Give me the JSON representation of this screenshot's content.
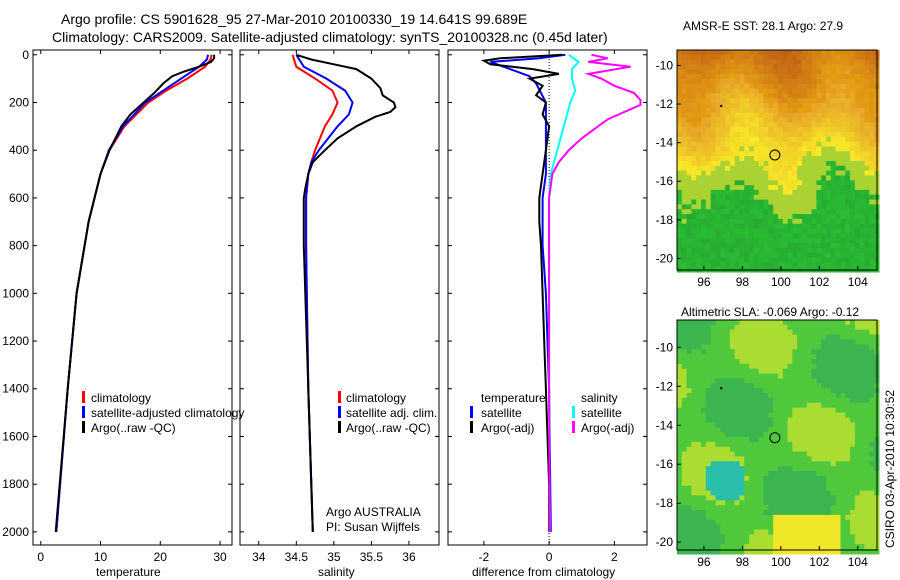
{
  "figure": {
    "title_line1": "Argo profile: CS 5901628_95 27-Mar-2010 20100330_19 14.641S 99.689E",
    "title_line2": "Climatology: CARS2009. Satellite-adjusted climatology: synTS_20100328.nc (0.45d later)",
    "footer_stamp": "CSIRO 03-Apr-2010 10:30:52",
    "colors": {
      "climatology": "#ff0000",
      "satellite": "#0000ff",
      "argo": "#000000",
      "sal_satellite": "#00ffff",
      "sal_argo": "#ff00ff"
    }
  },
  "chart_data": [
    {
      "type": "line",
      "name": "temperature",
      "xlabel": "temperature",
      "ylabel": "",
      "xlim": [
        -1.3,
        32
      ],
      "ylim": [
        2055,
        -20
      ],
      "xticks": [
        0,
        10,
        20,
        30
      ],
      "yticks": [
        0,
        200,
        400,
        600,
        800,
        1000,
        1200,
        1400,
        1600,
        1800,
        2000
      ],
      "legend": [
        "climatology",
        "satellite-adjusted climatology",
        "Argo(..raw -QC)"
      ],
      "series": [
        {
          "name": "climatology",
          "color": "#ff0000",
          "p": [
            0,
            20,
            50,
            100,
            150,
            200,
            300,
            400,
            500,
            700,
            1000,
            1400,
            2000
          ],
          "v": [
            28.6,
            28.4,
            27.5,
            24.5,
            21,
            18,
            14,
            11.5,
            10,
            8,
            6,
            4.5,
            2.6
          ]
        },
        {
          "name": "satellite-adjusted climatology",
          "color": "#0000ff",
          "p": [
            0,
            20,
            50,
            100,
            150,
            200,
            300,
            400,
            500,
            700,
            1000,
            1400,
            2000
          ],
          "v": [
            28,
            27.8,
            26.5,
            23.5,
            20.5,
            17.5,
            13.8,
            11.4,
            10,
            8,
            6,
            4.5,
            2.6
          ]
        },
        {
          "name": "Argo(..raw -QC)",
          "color": "#000000",
          "p": [
            0,
            15,
            30,
            50,
            70,
            90,
            120,
            160,
            200,
            250,
            300,
            400,
            500,
            700,
            1000,
            1400,
            2000
          ],
          "v": [
            29,
            29,
            28.5,
            26.5,
            24,
            22,
            20.5,
            19,
            17.2,
            15,
            13.5,
            11.5,
            10,
            8,
            6,
            4.5,
            2.5
          ]
        }
      ]
    },
    {
      "type": "line",
      "name": "salinity",
      "xlabel": "salinity",
      "xlim": [
        33.75,
        36.4
      ],
      "ylim": [
        2055,
        -20
      ],
      "xticks": [
        34,
        34.5,
        35,
        35.5,
        36
      ],
      "legend": [
        "climatology",
        "satellite adj. clim.",
        "Argo(..raw -QC)"
      ],
      "annotation": [
        "Argo AUSTRALIA",
        "PI: Susan Wijffels"
      ],
      "series": [
        {
          "name": "climatology",
          "color": "#ff0000",
          "p": [
            0,
            50,
            100,
            150,
            200,
            250,
            300,
            400,
            450,
            500,
            600,
            800,
            1000,
            1400,
            2000
          ],
          "v": [
            34.45,
            34.5,
            34.75,
            34.98,
            35.05,
            34.98,
            34.88,
            34.75,
            34.7,
            34.66,
            34.63,
            34.63,
            34.64,
            34.66,
            34.72
          ]
        },
        {
          "name": "satellite adj. clim.",
          "color": "#0000ff",
          "p": [
            0,
            50,
            100,
            150,
            200,
            250,
            300,
            400,
            450,
            500,
            600,
            800,
            1000,
            1400,
            2000
          ],
          "v": [
            34.5,
            34.6,
            34.9,
            35.15,
            35.25,
            35.2,
            35.05,
            34.8,
            34.7,
            34.66,
            34.63,
            34.63,
            34.64,
            34.66,
            34.72
          ]
        },
        {
          "name": "Argo(..raw -QC)",
          "color": "#000000",
          "p": [
            0,
            20,
            40,
            60,
            100,
            140,
            170,
            200,
            220,
            240,
            260,
            300,
            350,
            400,
            450,
            500,
            560,
            600,
            800,
            1000,
            1400,
            2000
          ],
          "v": [
            34.5,
            34.7,
            35.0,
            35.3,
            35.5,
            35.62,
            35.65,
            35.8,
            35.82,
            35.75,
            35.55,
            35.3,
            35.05,
            34.88,
            34.72,
            34.66,
            34.62,
            34.6,
            34.6,
            34.62,
            34.66,
            34.72
          ]
        }
      ]
    },
    {
      "type": "line",
      "name": "difference",
      "xlabel": "difference from climatology",
      "xlim": [
        -3.1,
        3.0
      ],
      "ylim": [
        2055,
        -20
      ],
      "xticks": [
        -2,
        0,
        2
      ],
      "legend_temperature": {
        "title": "temperature",
        "items": [
          "satellite",
          "Argo(-adj)"
        ]
      },
      "legend_salinity": {
        "title": "salinity",
        "items": [
          "satellite",
          "Argo(-adj)"
        ]
      },
      "series": [
        {
          "name": "temperature satellite",
          "color": "#0000ff",
          "p": [
            0,
            15,
            30,
            60,
            90,
            120,
            200,
            300,
            400,
            500,
            600,
            800,
            1000,
            1400,
            2000
          ],
          "v": [
            0.5,
            -0.3,
            -1.8,
            -1.2,
            -0.6,
            -0.4,
            -0.1,
            -0.1,
            -0.1,
            -0.1,
            -0.2,
            -0.2,
            -0.1,
            0,
            0.05
          ]
        },
        {
          "name": "temperature Argo(-adj)",
          "color": "#000000",
          "p": [
            0,
            15,
            25,
            40,
            60,
            80,
            100,
            130,
            170,
            200,
            250,
            300,
            400,
            500,
            600,
            700,
            800,
            1000,
            1200,
            1400,
            1600,
            1800,
            2000
          ],
          "v": [
            0.4,
            -1.5,
            -2.0,
            -1.8,
            -0.5,
            0.3,
            -0.6,
            -0.2,
            -0.4,
            -0.1,
            -0.2,
            0.0,
            -0.1,
            -0.2,
            -0.3,
            -0.3,
            -0.25,
            -0.2,
            -0.15,
            -0.1,
            -0.05,
            0,
            0.0
          ]
        },
        {
          "name": "salinity satellite",
          "color": "#00ffff",
          "p": [
            0,
            30,
            60,
            100,
            150,
            200,
            250,
            300,
            400,
            500,
            600,
            800,
            1000,
            1400,
            2000
          ],
          "v": [
            0.6,
            0.9,
            0.7,
            0.7,
            0.8,
            0.65,
            0.55,
            0.45,
            0.25,
            0.05,
            0,
            0,
            0,
            0,
            0.02
          ]
        },
        {
          "name": "salinity Argo(-adj)",
          "color": "#ff00ff",
          "p": [
            0,
            15,
            30,
            50,
            80,
            100,
            130,
            160,
            190,
            210,
            240,
            270,
            300,
            350,
            400,
            450,
            500,
            600,
            800,
            1000,
            1400,
            2000
          ],
          "v": [
            1.3,
            1.8,
            1.2,
            2.5,
            1.2,
            1.6,
            2.0,
            2.6,
            2.8,
            2.8,
            2.3,
            1.8,
            1.5,
            1.0,
            0.6,
            0.3,
            0.1,
            0,
            0,
            0,
            0,
            0.02
          ]
        }
      ]
    },
    {
      "type": "heatmap",
      "name": "sst-map",
      "title": "AMSR-E SST: 28.1 Argo: 27.9",
      "xlim": [
        94.6,
        105.0
      ],
      "ylim": [
        -20.6,
        -9.2
      ],
      "xticks": [
        96,
        98,
        100,
        102,
        104
      ],
      "yticks": [
        -10,
        -12,
        -14,
        -16,
        -18,
        -20
      ],
      "marker": {
        "lon": 99.689,
        "lat": -14.641
      }
    },
    {
      "type": "heatmap",
      "name": "sla-map",
      "title": "Altimetric SLA: -0.069 Argo: -0.12",
      "xlim": [
        94.6,
        105.0
      ],
      "ylim": [
        -20.4,
        -8.6
      ],
      "xticks": [
        96,
        98,
        100,
        102,
        104
      ],
      "yticks": [
        -10,
        -12,
        -14,
        -16,
        -18,
        -20
      ],
      "marker": {
        "lon": 99.689,
        "lat": -14.641
      }
    }
  ]
}
